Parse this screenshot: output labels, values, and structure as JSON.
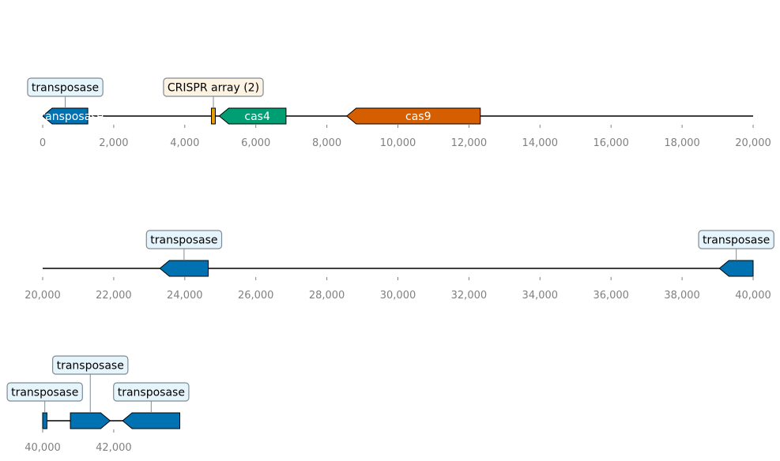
{
  "colors": {
    "transposase": "#0072b2",
    "cas4": "#009e73",
    "cas9": "#d55e00",
    "crispr": "#e69f00",
    "box_transposase": "#e6f4fc",
    "box_crispr": "#fdf3e3",
    "box_edge": "#7f8a94",
    "axis": "#808080"
  },
  "chart_data": {
    "type": "gene-map",
    "tracks": [
      {
        "range": [
          0,
          20000
        ],
        "ticks": [
          "0",
          "2,000",
          "4,000",
          "6,000",
          "8,000",
          "10,000",
          "12,000",
          "14,000",
          "16,000",
          "18,000",
          "20,000"
        ],
        "features": [
          {
            "kind": "transposase",
            "start": 0,
            "end": 1270,
            "strand": -1,
            "label": "transposase",
            "callout": "transposase"
          },
          {
            "kind": "crispr",
            "start": 4750,
            "end": 4860,
            "strand": 0,
            "label": "",
            "callout": "CRISPR array (2)"
          },
          {
            "kind": "cas4",
            "start": 4970,
            "end": 6850,
            "strand": -1,
            "label": "cas4",
            "callout": ""
          },
          {
            "kind": "cas9",
            "start": 8560,
            "end": 12320,
            "strand": -1,
            "label": "cas9",
            "callout": ""
          }
        ]
      },
      {
        "range": [
          20000,
          40000
        ],
        "ticks": [
          "20,000",
          "22,000",
          "24,000",
          "26,000",
          "28,000",
          "30,000",
          "32,000",
          "34,000",
          "36,000",
          "38,000",
          "40,000"
        ],
        "features": [
          {
            "kind": "transposase",
            "start": 23300,
            "end": 24660,
            "strand": -1,
            "label": "",
            "callout": "transposase"
          },
          {
            "kind": "transposase",
            "start": 39050,
            "end": 40000,
            "strand": -1,
            "label": "",
            "callout": "transposase"
          }
        ]
      },
      {
        "range": [
          40000,
          43860
        ],
        "ticks": [
          "40,000",
          "42,000"
        ],
        "features": [
          {
            "kind": "transposase",
            "start": 40000,
            "end": 40120,
            "strand": 0,
            "label": "",
            "callout": "transposase"
          },
          {
            "kind": "transposase",
            "start": 40780,
            "end": 41900,
            "strand": 1,
            "label": "",
            "callout": "transposase"
          },
          {
            "kind": "transposase",
            "start": 42250,
            "end": 43860,
            "strand": -1,
            "label": "",
            "callout": "transposase"
          }
        ]
      }
    ]
  }
}
